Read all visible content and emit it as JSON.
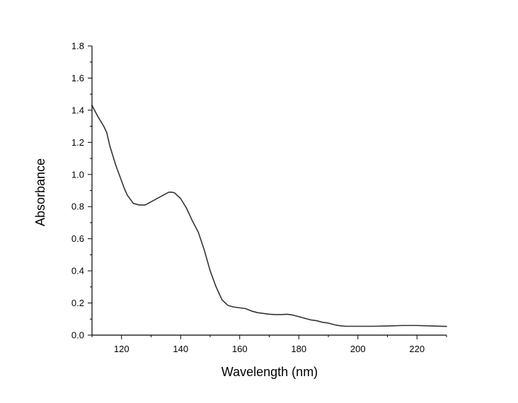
{
  "chart_data": {
    "type": "line",
    "title": "",
    "xlabel": "Wavelength (nm)",
    "ylabel": "Absorbance",
    "xlim": [
      110,
      230
    ],
    "ylim": [
      0,
      1.8
    ],
    "x_ticks": [
      120,
      140,
      160,
      180,
      200,
      220
    ],
    "x_tick_labels": [
      "120",
      "140",
      "160",
      "180",
      "200",
      "220"
    ],
    "y_ticks": [
      0.0,
      0.2,
      0.4,
      0.6,
      0.8,
      1.0,
      1.2,
      1.4,
      1.6,
      1.8
    ],
    "y_tick_labels": [
      "0.0",
      "0.2",
      "0.4",
      "0.6",
      "0.8",
      "1.0",
      "1.2",
      "1.4",
      "1.6",
      "1.8"
    ],
    "grid": false,
    "line_color": "#333333",
    "series": [
      {
        "x": [
          110,
          112,
          114,
          115,
          116,
          118,
          120,
          121,
          122,
          124,
          126,
          128,
          130,
          132,
          134,
          136,
          137,
          138,
          140,
          142,
          144,
          146,
          148,
          150,
          152,
          154,
          156,
          158,
          160,
          162,
          164,
          166,
          168,
          170,
          172,
          174,
          176,
          178,
          180,
          182,
          184,
          186,
          188,
          190,
          192,
          194,
          196,
          200,
          205,
          210,
          215,
          220,
          225,
          230
        ],
        "y": [
          1.43,
          1.36,
          1.3,
          1.26,
          1.18,
          1.06,
          0.96,
          0.91,
          0.87,
          0.82,
          0.81,
          0.81,
          0.83,
          0.85,
          0.87,
          0.89,
          0.89,
          0.885,
          0.85,
          0.79,
          0.71,
          0.64,
          0.53,
          0.4,
          0.3,
          0.22,
          0.185,
          0.175,
          0.17,
          0.165,
          0.15,
          0.14,
          0.135,
          0.13,
          0.128,
          0.128,
          0.13,
          0.125,
          0.115,
          0.105,
          0.095,
          0.09,
          0.08,
          0.075,
          0.065,
          0.058,
          0.055,
          0.055,
          0.055,
          0.057,
          0.06,
          0.06,
          0.057,
          0.054
        ]
      }
    ]
  }
}
